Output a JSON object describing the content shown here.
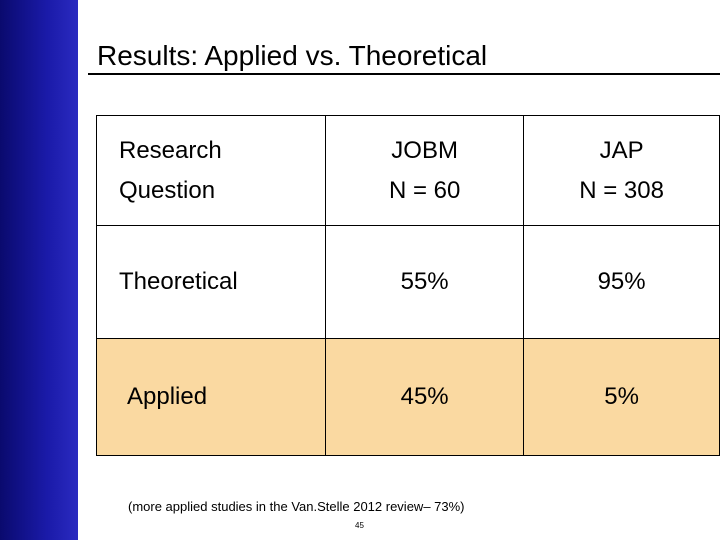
{
  "header": {
    "title": "Results: Applied vs. Theoretical"
  },
  "table": {
    "rows": [
      [
        [
          "Research",
          "Question"
        ],
        [
          "JOBM",
          "N = 60"
        ],
        [
          "JAP",
          "N = 308"
        ]
      ],
      [
        "Theoretical",
        "55%",
        "95%"
      ],
      [
        "Applied",
        "45%",
        "5%"
      ]
    ]
  },
  "footnote": "(more applied studies in the Van.Stelle 2012 review– 73%)",
  "page_number": "45"
}
